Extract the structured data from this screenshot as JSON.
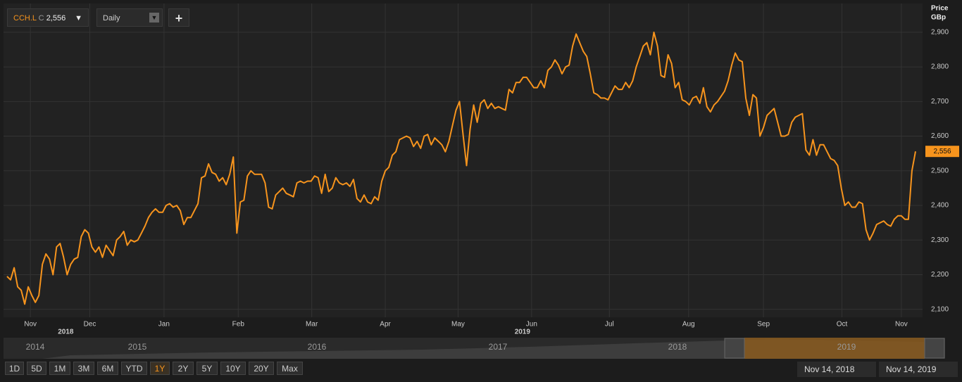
{
  "toolbar": {
    "symbol": "CCH.L",
    "close_prefix": "C",
    "close": "2,556",
    "interval": "Daily",
    "add": "+"
  },
  "chart_data": {
    "type": "line",
    "y_axis_title": [
      "Price",
      "GBp"
    ],
    "color": "#f7941d",
    "grid": true,
    "last_price_label": "2,556",
    "values": [
      2195,
      2185,
      2220,
      2165,
      2155,
      2115,
      2165,
      2140,
      2120,
      2140,
      2230,
      2260,
      2245,
      2200,
      2280,
      2290,
      2250,
      2200,
      2230,
      2245,
      2250,
      2310,
      2330,
      2320,
      2280,
      2265,
      2280,
      2250,
      2285,
      2270,
      2255,
      2300,
      2310,
      2325,
      2285,
      2300,
      2295,
      2300,
      2320,
      2340,
      2365,
      2380,
      2390,
      2380,
      2380,
      2400,
      2405,
      2395,
      2400,
      2385,
      2345,
      2365,
      2365,
      2385,
      2405,
      2480,
      2485,
      2520,
      2495,
      2490,
      2470,
      2480,
      2460,
      2490,
      2540,
      2320,
      2410,
      2415,
      2485,
      2500,
      2490,
      2490,
      2490,
      2465,
      2395,
      2390,
      2430,
      2440,
      2450,
      2435,
      2430,
      2425,
      2465,
      2470,
      2465,
      2470,
      2470,
      2485,
      2480,
      2435,
      2490,
      2440,
      2450,
      2480,
      2465,
      2460,
      2465,
      2455,
      2475,
      2420,
      2410,
      2430,
      2410,
      2405,
      2425,
      2415,
      2470,
      2500,
      2510,
      2545,
      2555,
      2590,
      2595,
      2600,
      2595,
      2570,
      2585,
      2565,
      2600,
      2605,
      2575,
      2595,
      2585,
      2575,
      2555,
      2585,
      2630,
      2675,
      2700,
      2605,
      2515,
      2620,
      2690,
      2640,
      2695,
      2705,
      2680,
      2695,
      2680,
      2685,
      2680,
      2675,
      2735,
      2725,
      2755,
      2755,
      2770,
      2770,
      2755,
      2740,
      2740,
      2760,
      2740,
      2790,
      2800,
      2820,
      2805,
      2780,
      2800,
      2805,
      2860,
      2895,
      2870,
      2845,
      2830,
      2780,
      2725,
      2720,
      2710,
      2710,
      2705,
      2725,
      2745,
      2735,
      2735,
      2755,
      2740,
      2760,
      2800,
      2830,
      2860,
      2870,
      2835,
      2900,
      2860,
      2775,
      2770,
      2835,
      2810,
      2740,
      2755,
      2705,
      2700,
      2690,
      2710,
      2715,
      2695,
      2740,
      2685,
      2670,
      2690,
      2700,
      2715,
      2730,
      2760,
      2805,
      2840,
      2820,
      2815,
      2710,
      2660,
      2720,
      2710,
      2600,
      2625,
      2660,
      2670,
      2680,
      2640,
      2600,
      2600,
      2605,
      2640,
      2655,
      2660,
      2665,
      2560,
      2545,
      2590,
      2545,
      2575,
      2575,
      2555,
      2535,
      2530,
      2515,
      2450,
      2400,
      2410,
      2395,
      2395,
      2410,
      2405,
      2330,
      2300,
      2320,
      2345,
      2350,
      2355,
      2345,
      2340,
      2360,
      2370,
      2370,
      2360,
      2360,
      2500,
      2556
    ],
    "xlim": [
      -1,
      259
    ],
    "xticks": [
      {
        "value": 6.6,
        "label": "Nov"
      },
      {
        "value": 23.4,
        "label": "Dec"
      },
      {
        "value": 44.4,
        "label": "Jan"
      },
      {
        "value": 65.4,
        "label": "Feb"
      },
      {
        "value": 86.2,
        "label": "Mar"
      },
      {
        "value": 107,
        "label": "Apr"
      },
      {
        "value": 127.6,
        "label": "May"
      },
      {
        "value": 148.4,
        "label": "Jun"
      },
      {
        "value": 170.4,
        "label": "Jul"
      },
      {
        "value": 192.8,
        "label": "Aug"
      },
      {
        "value": 214,
        "label": "Sep"
      },
      {
        "value": 236.2,
        "label": "Oct"
      },
      {
        "value": 253,
        "label": "Nov"
      }
    ],
    "x_year_ticks": [
      {
        "value": 16.6,
        "label": "2018"
      },
      {
        "value": 145.8,
        "label": "2019"
      }
    ],
    "ylim": [
      2077,
      2983
    ],
    "yticks": [
      {
        "value": 2100,
        "label": "2,100"
      },
      {
        "value": 2200,
        "label": "2,200"
      },
      {
        "value": 2300,
        "label": "2,300"
      },
      {
        "value": 2400,
        "label": "2,400"
      },
      {
        "value": 2500,
        "label": "2,500"
      },
      {
        "value": 2600,
        "label": "2,600"
      },
      {
        "value": 2700,
        "label": "2,700"
      },
      {
        "value": 2800,
        "label": "2,800"
      },
      {
        "value": 2900,
        "label": "2,900"
      }
    ]
  },
  "navigator": {
    "years": [
      "2014",
      "2015",
      "2016",
      "2017",
      "2018",
      "2019"
    ]
  },
  "ranges": [
    "1D",
    "5D",
    "1M",
    "3M",
    "6M",
    "YTD",
    "1Y",
    "2Y",
    "5Y",
    "10Y",
    "20Y",
    "Max"
  ],
  "dates": [
    "Nov 14, 2018",
    "Nov 14, 2019"
  ]
}
